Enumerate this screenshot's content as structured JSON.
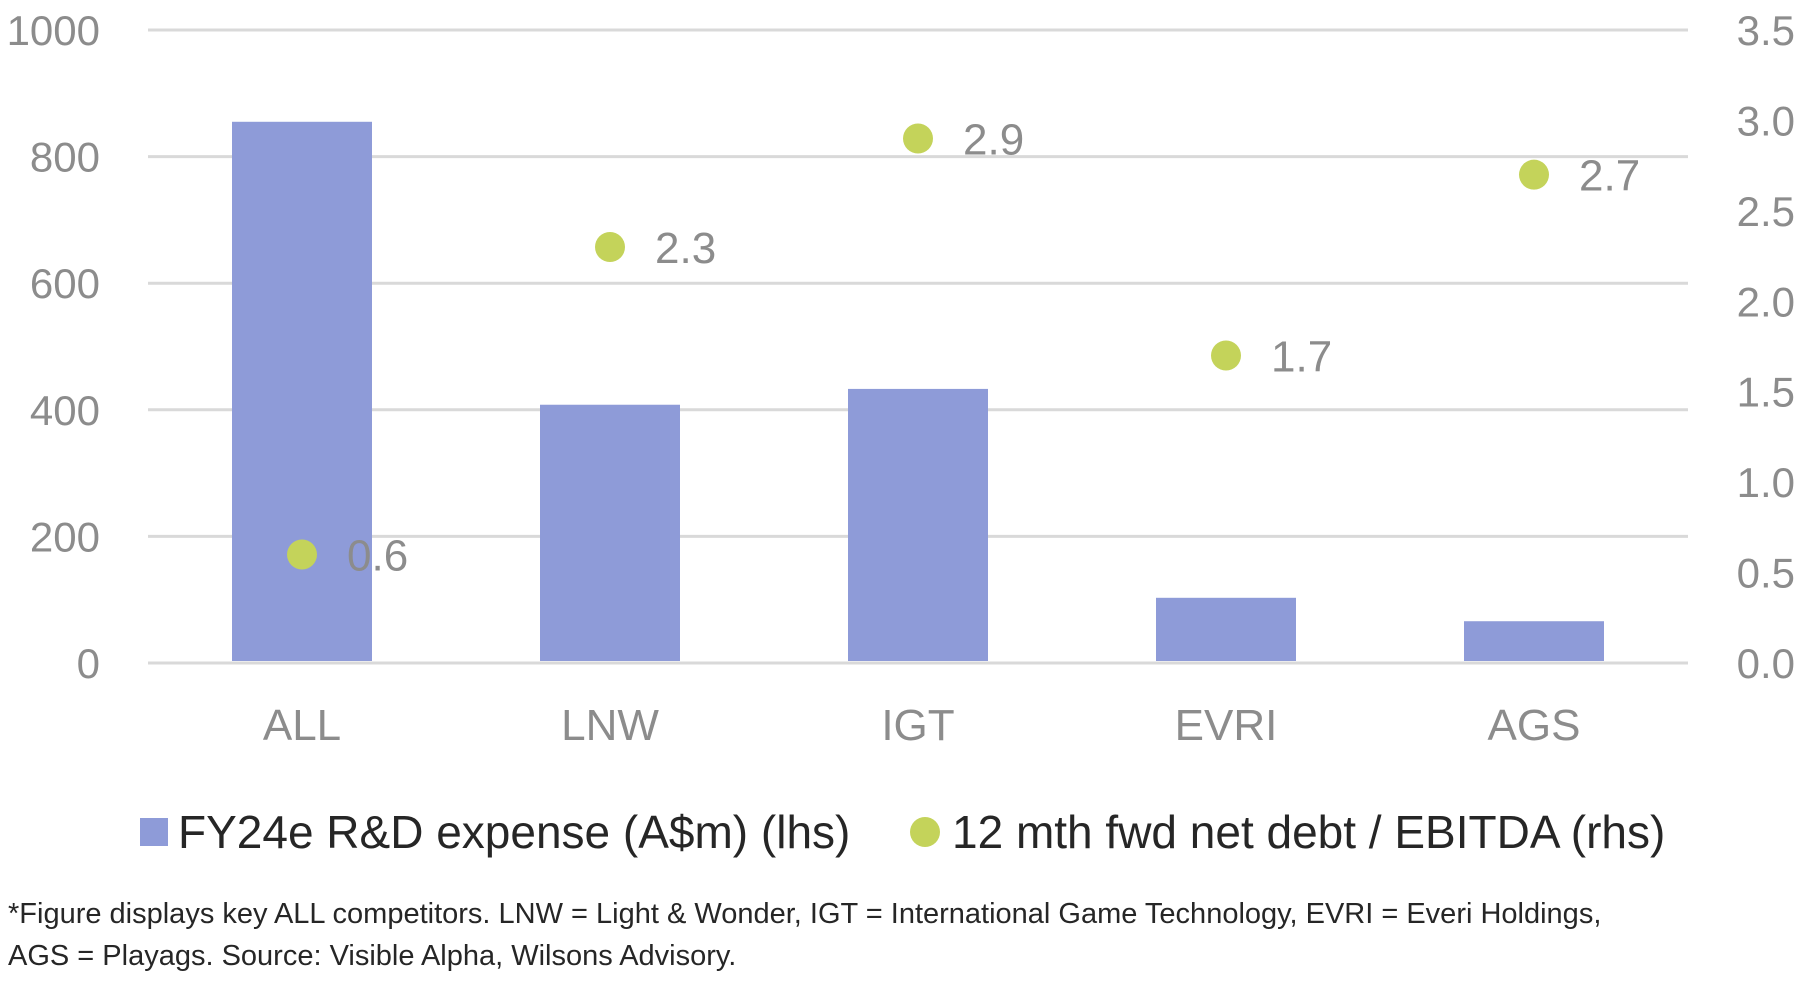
{
  "chart_data": {
    "type": "bar",
    "categories": [
      "ALL",
      "LNW",
      "IGT",
      "EVRI",
      "AGS"
    ],
    "series": [
      {
        "name": "FY24e R&D expense (A$m) (lhs)",
        "type": "bar",
        "axis": "left",
        "values": [
          855,
          408,
          433,
          103,
          66
        ],
        "color": "#8e9bd8"
      },
      {
        "name": "12 mth fwd net debt / EBITDA (rhs)",
        "type": "scatter",
        "axis": "right",
        "values": [
          0.6,
          2.3,
          2.9,
          1.7,
          2.7
        ],
        "labels": [
          "0.6",
          "2.3",
          "2.9",
          "1.7",
          "2.7"
        ],
        "color": "#c4d35a"
      }
    ],
    "y_left": {
      "range": [
        0,
        1000
      ],
      "ticks": [
        "0",
        "200",
        "400",
        "600",
        "800",
        "1000"
      ]
    },
    "y_right": {
      "range": [
        0,
        3.5
      ],
      "ticks": [
        "0.0",
        "0.5",
        "1.0",
        "1.5",
        "2.0",
        "2.5",
        "3.0",
        "3.5"
      ]
    },
    "grid": true,
    "legend_position": "bottom"
  },
  "footnote": {
    "line1": "*Figure displays key ALL competitors. LNW = Light & Wonder, IGT = International Game Technology, EVRI = Everi Holdings,",
    "line2": "AGS = Playags. Source: Visible Alpha, Wilsons Advisory."
  },
  "colors": {
    "grid": "#d9d9d9",
    "axis_text": "#8c8c8c",
    "label_text": "#8c8c8c"
  }
}
